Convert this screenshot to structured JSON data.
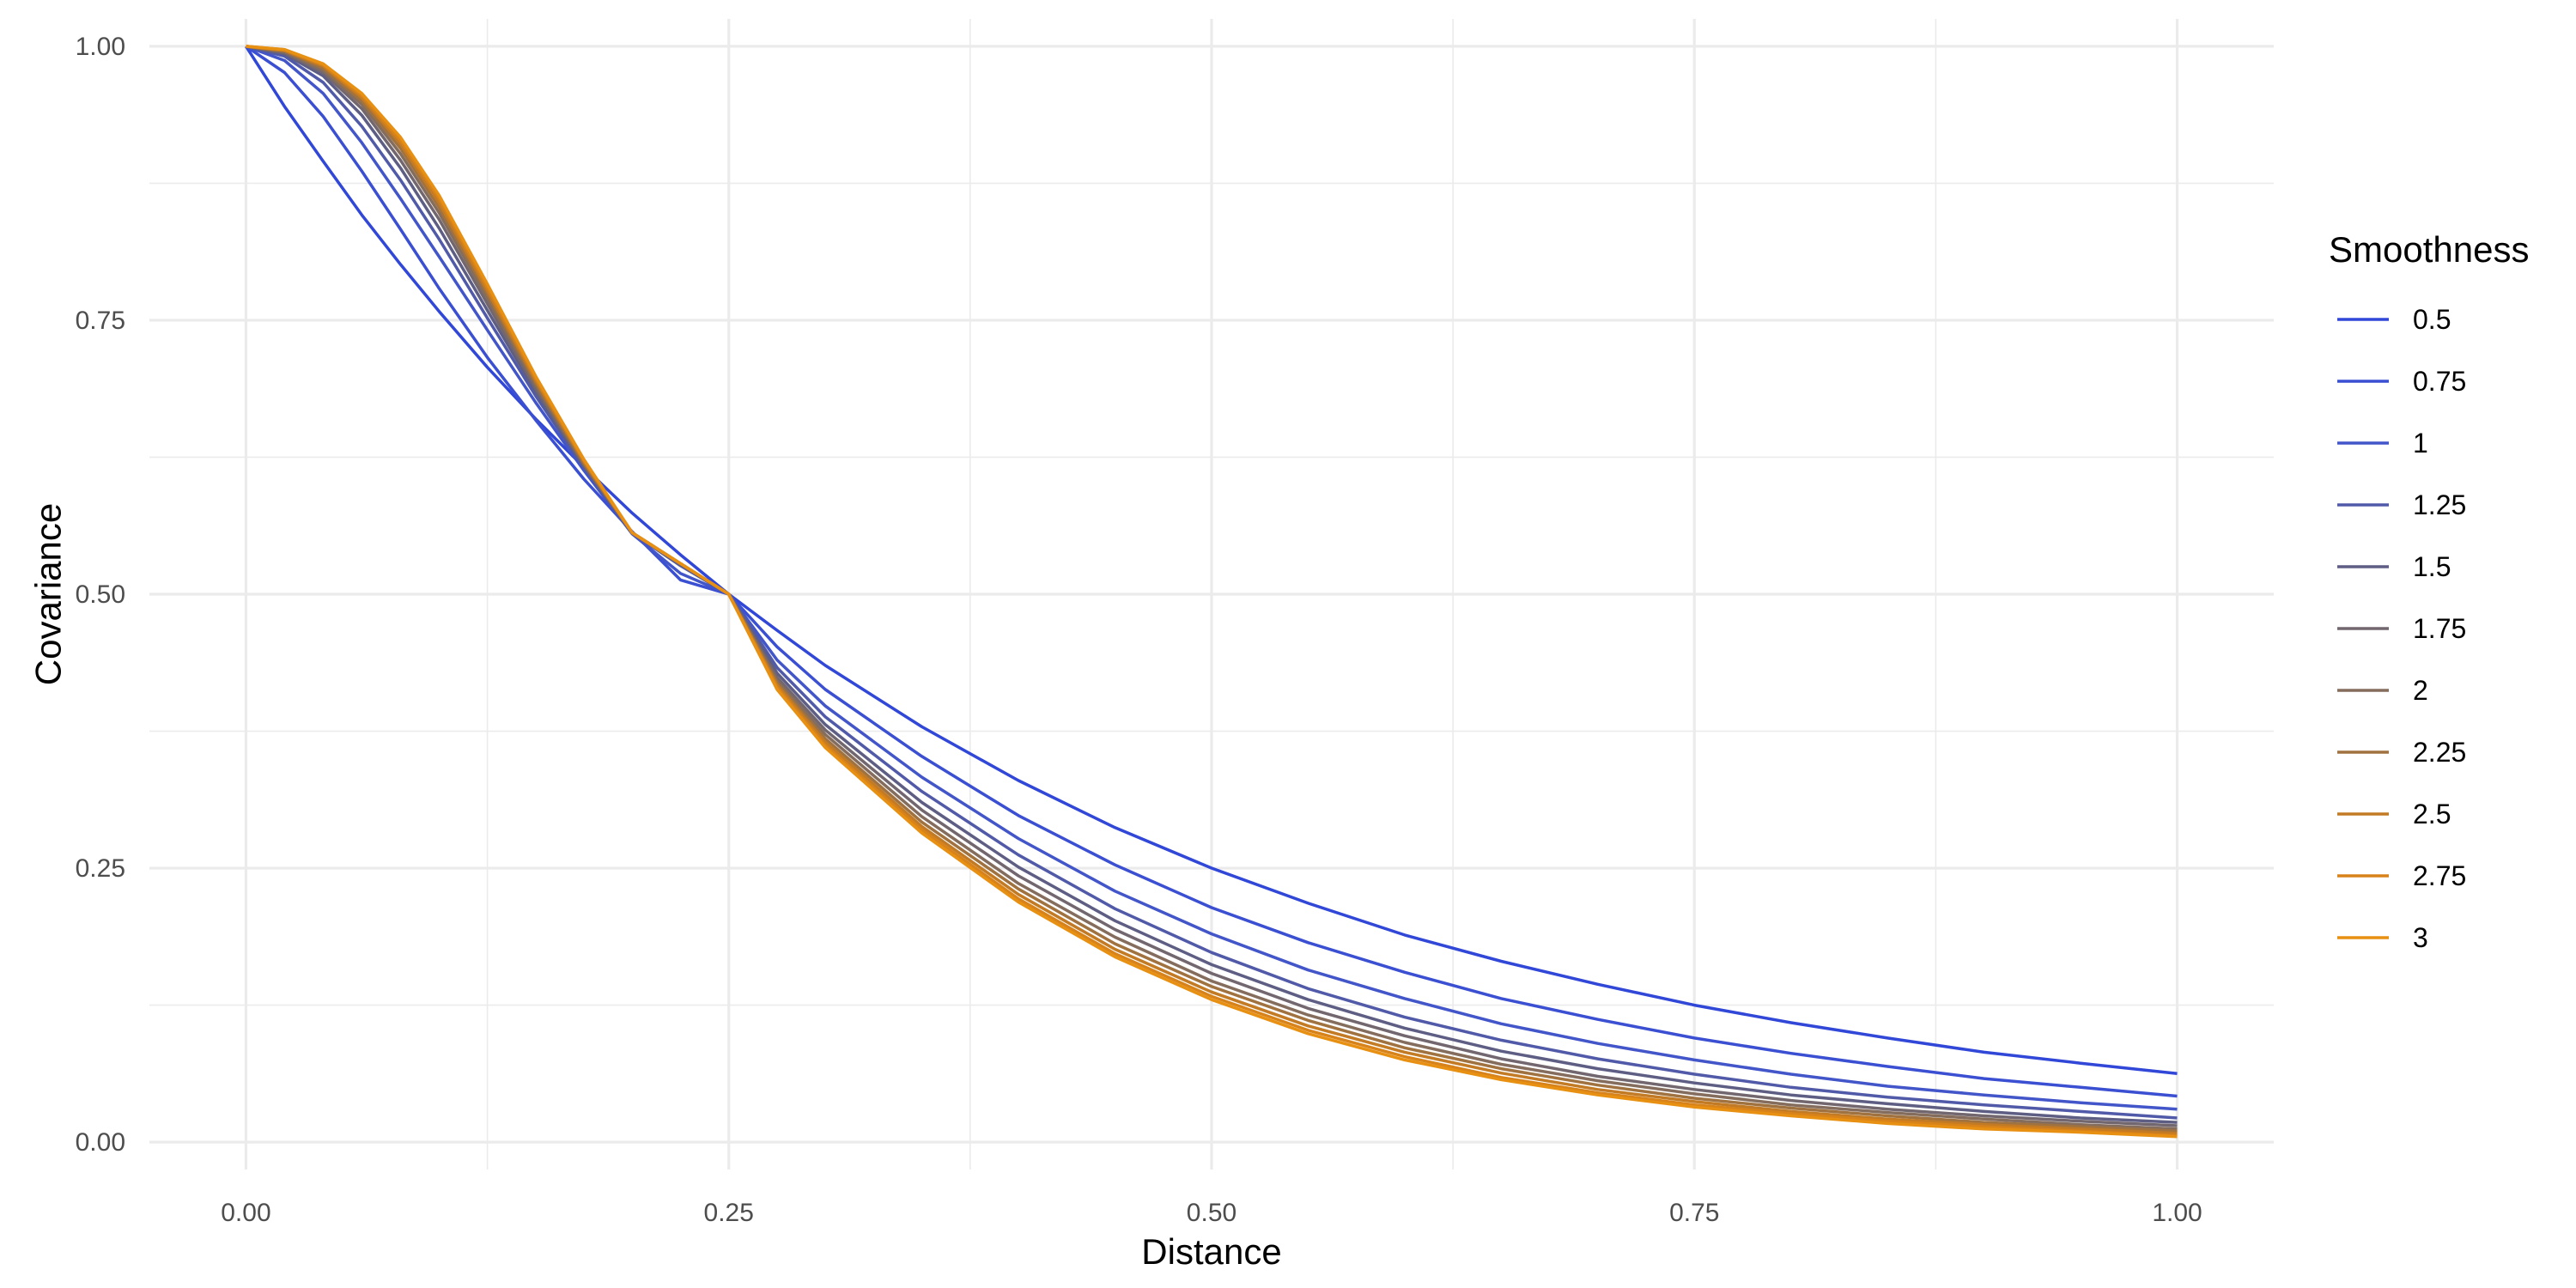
{
  "chart_data": {
    "type": "line",
    "title": "",
    "xlabel": "Distance",
    "ylabel": "Covariance",
    "xlim": [
      -0.05,
      1.05
    ],
    "ylim": [
      -0.025,
      1.025
    ],
    "x_ticks": [
      0.0,
      0.25,
      0.5,
      0.75,
      1.0
    ],
    "x_tick_labels": [
      "0.00",
      "0.25",
      "0.50",
      "0.75",
      "1.00"
    ],
    "y_ticks": [
      0.0,
      0.25,
      0.5,
      0.75,
      1.0
    ],
    "y_tick_labels": [
      "0.00",
      "0.25",
      "0.50",
      "0.75",
      "1.00"
    ],
    "grid": true,
    "legend": {
      "title": "Smoothness",
      "position": "right"
    },
    "x": [
      0.0,
      0.02,
      0.04,
      0.06,
      0.08,
      0.1,
      0.125,
      0.15,
      0.175,
      0.2,
      0.225,
      0.25,
      0.275,
      0.3,
      0.35,
      0.4,
      0.45,
      0.5,
      0.55,
      0.6,
      0.65,
      0.7,
      0.75,
      0.8,
      0.85,
      0.9,
      0.95,
      1.0
    ],
    "series": [
      {
        "name": "0.5",
        "color": "#3047d8",
        "values": [
          1.0,
          0.945,
          0.895,
          0.846,
          0.801,
          0.758,
          0.707,
          0.66,
          0.616,
          0.574,
          0.536,
          0.5,
          0.467,
          0.435,
          0.379,
          0.33,
          0.287,
          0.25,
          0.218,
          0.189,
          0.165,
          0.144,
          0.125,
          0.109,
          0.095,
          0.082,
          0.072,
          0.0625
        ]
      },
      {
        "name": "0.75",
        "color": "#3a4fd2",
        "values": [
          1.0,
          0.976,
          0.936,
          0.886,
          0.833,
          0.779,
          0.716,
          0.659,
          0.605,
          0.557,
          0.513,
          0.5,
          0.452,
          0.413,
          0.352,
          0.298,
          0.253,
          0.214,
          0.182,
          0.155,
          0.131,
          0.112,
          0.095,
          0.081,
          0.069,
          0.058,
          0.05,
          0.042
        ]
      },
      {
        "name": "1",
        "color": "#4255c9",
        "values": [
          1.0,
          0.987,
          0.957,
          0.912,
          0.861,
          0.808,
          0.741,
          0.675,
          0.613,
          0.555,
          0.519,
          0.5,
          0.44,
          0.398,
          0.333,
          0.277,
          0.229,
          0.19,
          0.157,
          0.131,
          0.108,
          0.09,
          0.075,
          0.062,
          0.051,
          0.043,
          0.036,
          0.03
        ]
      },
      {
        "name": "1.25",
        "color": "#505aa8",
        "values": [
          1.0,
          0.991,
          0.967,
          0.927,
          0.878,
          0.824,
          0.752,
          0.681,
          0.616,
          0.556,
          0.526,
          0.5,
          0.433,
          0.388,
          0.32,
          0.262,
          0.213,
          0.173,
          0.14,
          0.114,
          0.093,
          0.076,
          0.062,
          0.05,
          0.041,
          0.034,
          0.028,
          0.022
        ]
      },
      {
        "name": "1.5",
        "color": "#5e5e85",
        "values": [
          1.0,
          0.993,
          0.973,
          0.937,
          0.889,
          0.834,
          0.759,
          0.685,
          0.617,
          0.556,
          0.527,
          0.5,
          0.428,
          0.381,
          0.31,
          0.251,
          0.202,
          0.162,
          0.13,
          0.104,
          0.083,
          0.067,
          0.054,
          0.043,
          0.035,
          0.028,
          0.022,
          0.018
        ]
      },
      {
        "name": "1.75",
        "color": "#72676e",
        "values": [
          1.0,
          0.994,
          0.976,
          0.943,
          0.896,
          0.842,
          0.765,
          0.688,
          0.618,
          0.556,
          0.528,
          0.5,
          0.424,
          0.376,
          0.303,
          0.243,
          0.194,
          0.154,
          0.122,
          0.097,
          0.076,
          0.06,
          0.048,
          0.038,
          0.03,
          0.024,
          0.019,
          0.015
        ]
      },
      {
        "name": "2",
        "color": "#856d5e",
        "values": [
          1.0,
          0.995,
          0.978,
          0.947,
          0.902,
          0.848,
          0.77,
          0.691,
          0.619,
          0.556,
          0.528,
          0.5,
          0.421,
          0.372,
          0.297,
          0.236,
          0.187,
          0.147,
          0.116,
          0.091,
          0.071,
          0.056,
          0.044,
          0.034,
          0.027,
          0.021,
          0.016,
          0.012
        ]
      },
      {
        "name": "2.25",
        "color": "#a0723f",
        "values": [
          1.0,
          0.996,
          0.98,
          0.95,
          0.907,
          0.853,
          0.774,
          0.693,
          0.62,
          0.556,
          0.528,
          0.5,
          0.419,
          0.368,
          0.292,
          0.231,
          0.181,
          0.142,
          0.111,
          0.086,
          0.067,
          0.052,
          0.04,
          0.031,
          0.024,
          0.018,
          0.014,
          0.01
        ]
      },
      {
        "name": "2.5",
        "color": "#c27b24",
        "values": [
          1.0,
          0.996,
          0.982,
          0.953,
          0.911,
          0.857,
          0.777,
          0.695,
          0.621,
          0.556,
          0.528,
          0.5,
          0.417,
          0.365,
          0.288,
          0.226,
          0.176,
          0.137,
          0.106,
          0.082,
          0.063,
          0.048,
          0.037,
          0.028,
          0.021,
          0.016,
          0.012,
          0.008
        ]
      },
      {
        "name": "2.75",
        "color": "#d8821a",
        "values": [
          1.0,
          0.997,
          0.983,
          0.955,
          0.914,
          0.861,
          0.78,
          0.697,
          0.622,
          0.556,
          0.528,
          0.5,
          0.415,
          0.362,
          0.285,
          0.222,
          0.172,
          0.133,
          0.102,
          0.078,
          0.059,
          0.045,
          0.034,
          0.026,
          0.019,
          0.014,
          0.01,
          0.006
        ]
      },
      {
        "name": "3",
        "color": "#e79012",
        "values": [
          1.0,
          0.997,
          0.984,
          0.957,
          0.917,
          0.864,
          0.783,
          0.699,
          0.623,
          0.556,
          0.528,
          0.5,
          0.413,
          0.36,
          0.282,
          0.219,
          0.169,
          0.13,
          0.099,
          0.075,
          0.057,
          0.043,
          0.032,
          0.024,
          0.017,
          0.012,
          0.009,
          0.005
        ]
      }
    ]
  }
}
